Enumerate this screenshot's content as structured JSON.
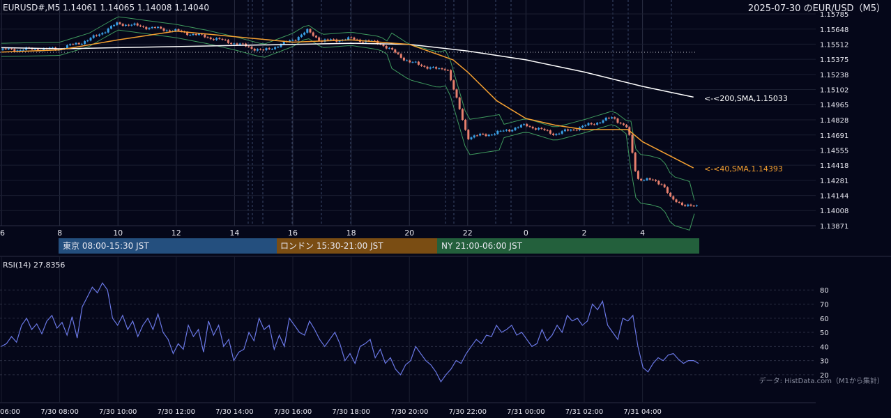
{
  "header": {
    "symbol_line": "EURUSD#,M5 1.14061 1.14065 1.14008 1.14040",
    "chart_title": "2025-07-30 のEUR/USD（M5）"
  },
  "colors": {
    "background": "#050719",
    "grid": "#2a2e42",
    "candle_up": "#3aa0e6",
    "candle_down": "#e8806e",
    "sma40": "#f5a031",
    "sma200": "#ffffff",
    "bollinger": "#3f9a5e",
    "rsi": "#6a78e6",
    "session_tokyo": "#244f7e",
    "session_london": "#7a4d13",
    "session_ny": "#23603c"
  },
  "labels": {
    "sma200": "<-<200,SMA,1.15033",
    "sma40": "<-<40,SMA,1.14393",
    "rsi_title": "RSI(14) 27.8356",
    "credit": "データ: HistData.com（M1から集計）"
  },
  "sessions": [
    {
      "label": "東京 08:00-15:30 JST"
    },
    {
      "label": "ロンドン 15:30-21:00 JST"
    },
    {
      "label": "NY 21:00-06:00 JST"
    }
  ],
  "chart_data": [
    {
      "type": "line",
      "title": "2025-07-30 のEUR/USD（M5）",
      "ylim": [
        1.13871,
        1.15785
      ],
      "y_ticks": [
        "1.15785",
        "1.15648",
        "1.15512",
        "1.15375",
        "1.15238",
        "1.15102",
        "1.14965",
        "1.14828",
        "1.14691",
        "1.14555",
        "1.14418",
        "1.14281",
        "1.14144",
        "1.14008",
        "1.13871"
      ],
      "x_ticks": [
        "6",
        "8",
        "10",
        "12",
        "14",
        "16",
        "18",
        "20",
        "22",
        "0",
        "2",
        "4"
      ],
      "series": [
        {
          "name": "200,SMA",
          "points": [
            [
              6,
              1.1548
            ],
            [
              8,
              1.1547
            ],
            [
              10,
              1.1548
            ],
            [
              12,
              1.1549
            ],
            [
              14,
              1.155
            ],
            [
              16,
              1.1551
            ],
            [
              18,
              1.1552
            ],
            [
              20,
              1.1551
            ],
            [
              22,
              1.1545
            ],
            [
              0,
              1.1537
            ],
            [
              2,
              1.1526
            ],
            [
              4,
              1.1513
            ],
            [
              5.75,
              1.15033
            ]
          ]
        },
        {
          "name": "40,SMA",
          "points": [
            [
              6,
              1.1544
            ],
            [
              8,
              1.1546
            ],
            [
              10,
              1.1555
            ],
            [
              12,
              1.1563
            ],
            [
              14,
              1.1558
            ],
            [
              16,
              1.1553
            ],
            [
              18,
              1.1555
            ],
            [
              20,
              1.1551
            ],
            [
              21.5,
              1.1537
            ],
            [
              22,
              1.1526
            ],
            [
              23,
              1.15
            ],
            [
              0,
              1.1484
            ],
            [
              1,
              1.1478
            ],
            [
              2,
              1.1474
            ],
            [
              3,
              1.1474
            ],
            [
              3.5,
              1.1474
            ],
            [
              4,
              1.1463
            ],
            [
              5.75,
              1.14393
            ]
          ]
        },
        {
          "name": "close",
          "points": [
            [
              6,
              1.1546
            ],
            [
              8,
              1.1547
            ],
            [
              9,
              1.1555
            ],
            [
              10,
              1.157
            ],
            [
              12,
              1.1563
            ],
            [
              13,
              1.1558
            ],
            [
              14,
              1.1552
            ],
            [
              15,
              1.1545
            ],
            [
              16,
              1.1555
            ],
            [
              16.5,
              1.1563
            ],
            [
              17,
              1.1554
            ],
            [
              18,
              1.1556
            ],
            [
              19,
              1.1552
            ],
            [
              20,
              1.1535
            ],
            [
              21,
              1.1528
            ],
            [
              21.3,
              1.153
            ],
            [
              22,
              1.1467
            ],
            [
              23,
              1.1471
            ],
            [
              0,
              1.1478
            ],
            [
              1,
              1.147
            ],
            [
              2,
              1.1477
            ],
            [
              3,
              1.1485
            ],
            [
              3.5,
              1.1475
            ],
            [
              3.8,
              1.143
            ],
            [
              4.3,
              1.1428
            ],
            [
              4.7,
              1.1425
            ],
            [
              5,
              1.141
            ],
            [
              5.75,
              1.1404
            ]
          ]
        }
      ]
    },
    {
      "type": "line",
      "title": "RSI(14) 27.8356",
      "ylim": [
        15,
        88
      ],
      "y_ticks": [
        80,
        70,
        60,
        50,
        40,
        30,
        20
      ],
      "x_ticks": [
        "06:00",
        "7/30 08:00",
        "7/30 10:00",
        "7/30 12:00",
        "7/30 14:00",
        "7/30 16:00",
        "7/30 18:00",
        "7/30 20:00",
        "7/30 22:00",
        "7/31 00:00",
        "7/31 02:00",
        "7/31 04:00"
      ],
      "series": [
        {
          "name": "RSI(14)",
          "values": [
            40,
            42,
            47,
            43,
            55,
            60,
            52,
            56,
            49,
            58,
            62,
            53,
            57,
            48,
            61,
            46,
            68,
            75,
            82,
            78,
            85,
            80,
            60,
            55,
            62,
            52,
            58,
            47,
            55,
            60,
            52,
            63,
            50,
            45,
            35,
            42,
            38,
            55,
            47,
            52,
            36,
            58,
            48,
            55,
            40,
            45,
            30,
            36,
            38,
            50,
            44,
            60,
            52,
            55,
            38,
            48,
            40,
            60,
            55,
            50,
            48,
            58,
            52,
            45,
            40,
            45,
            50,
            42,
            30,
            35,
            28,
            40,
            42,
            45,
            32,
            38,
            28,
            32,
            24,
            20,
            27,
            30,
            40,
            35,
            30,
            27,
            22,
            15,
            20,
            24,
            30,
            28,
            35,
            40,
            45,
            42,
            48,
            47,
            55,
            50,
            52,
            55,
            48,
            50,
            45,
            40,
            42,
            52,
            44,
            48,
            55,
            50,
            62,
            58,
            60,
            55,
            58,
            70,
            66,
            72,
            55,
            50,
            45,
            60,
            58,
            62,
            40,
            25,
            22,
            28,
            32,
            30,
            34,
            35,
            31,
            28,
            30,
            30,
            28
          ]
        }
      ]
    }
  ]
}
